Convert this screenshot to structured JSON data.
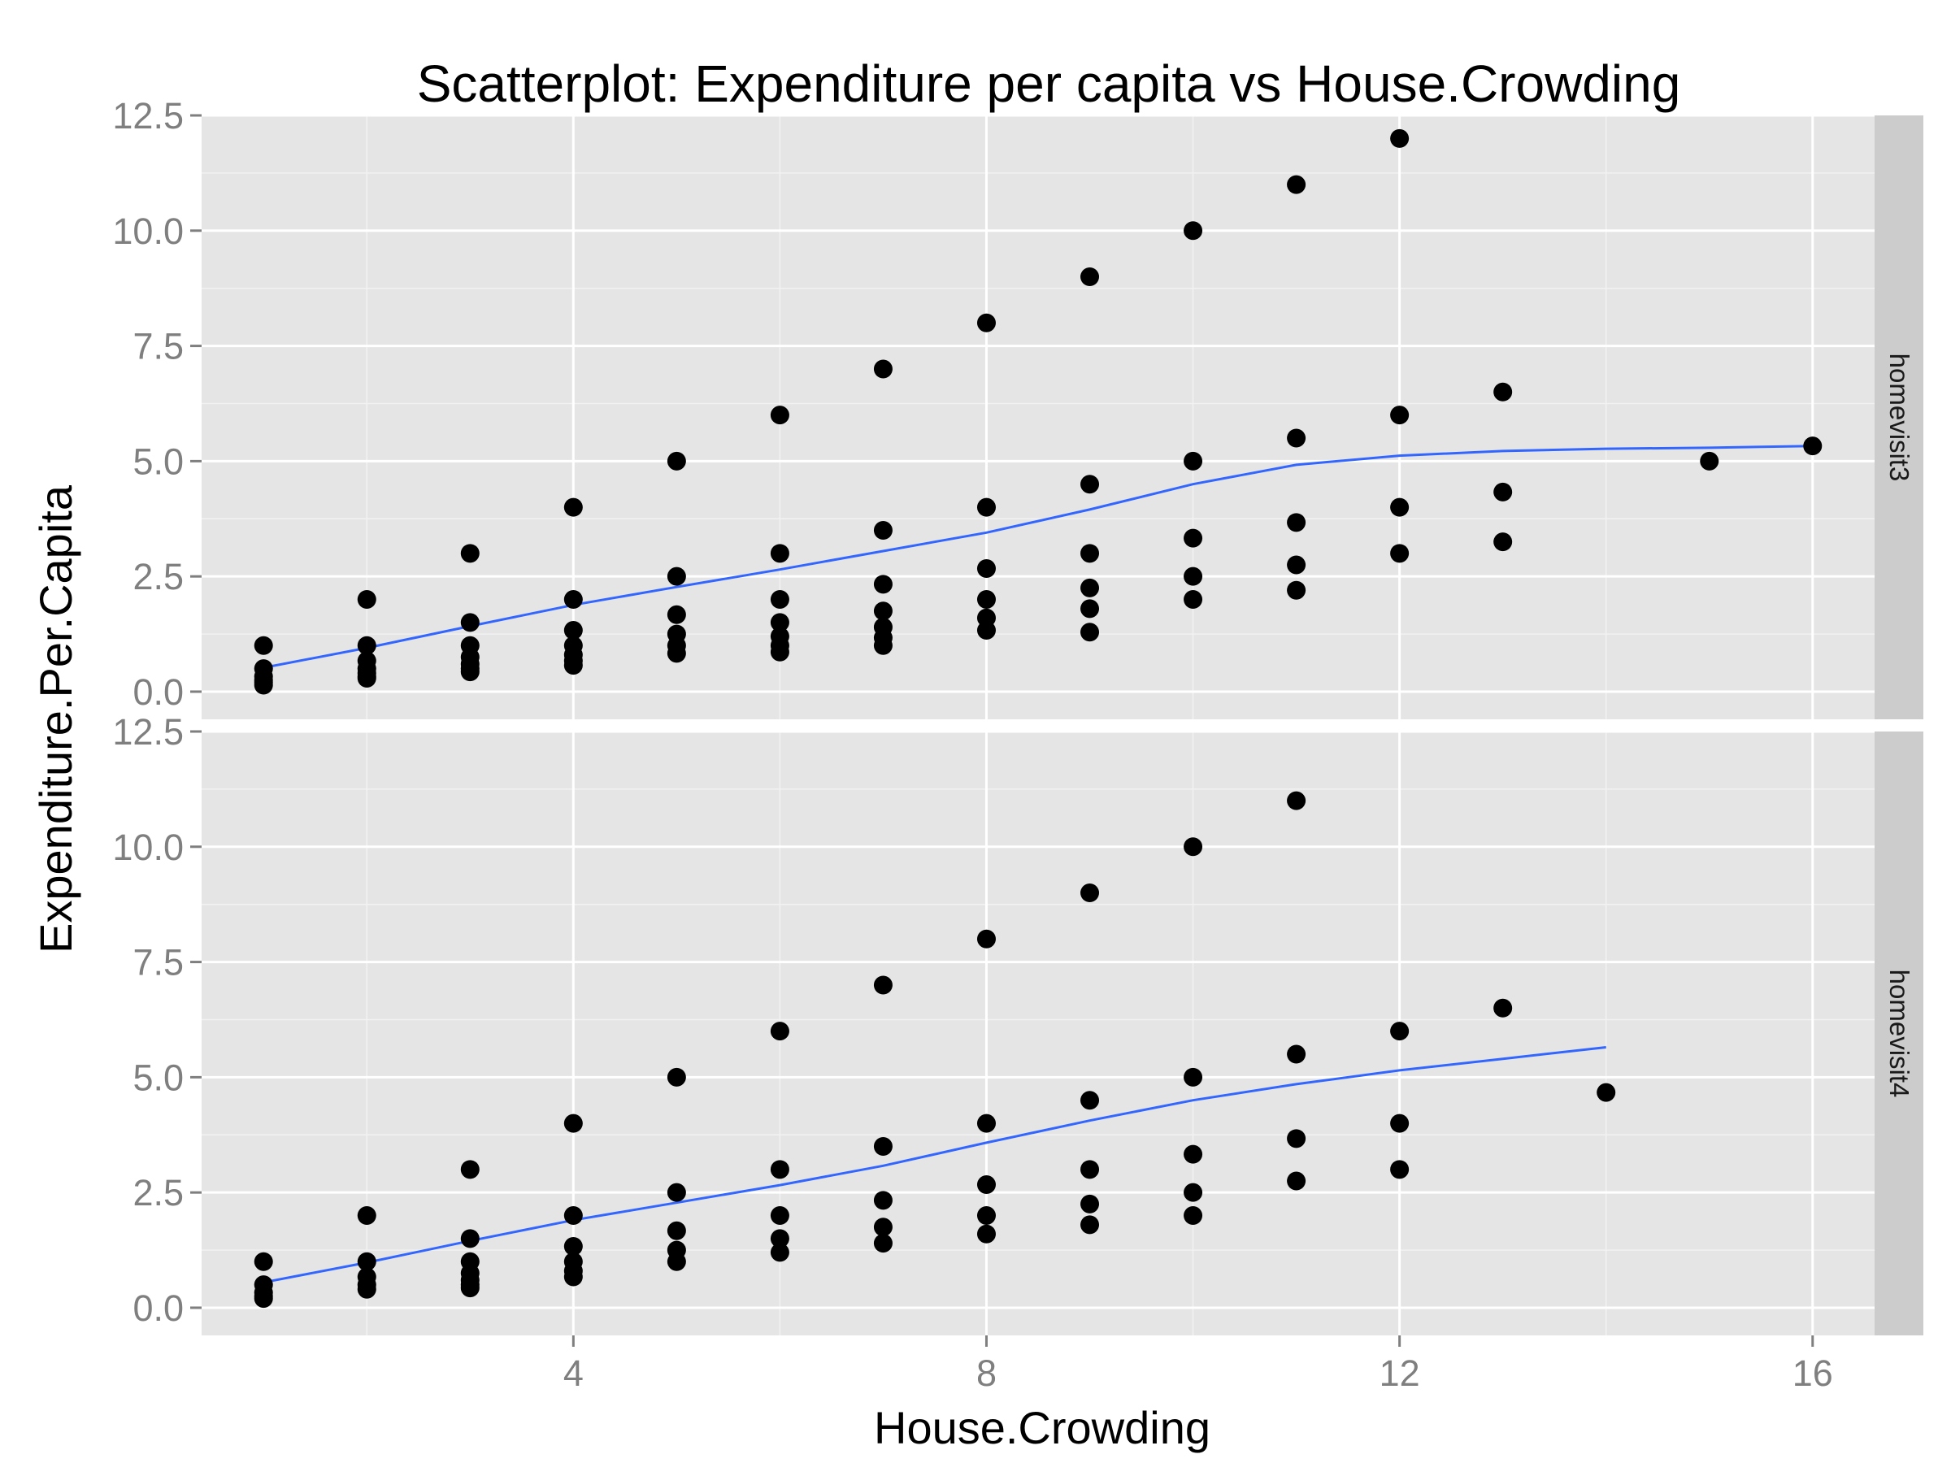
{
  "chart_data": {
    "type": "scatter",
    "title": "Scatterplot: Expenditure per capita vs House.Crowding",
    "xlabel": "House.Crowding",
    "ylabel": "Expenditure.Per.Capita",
    "xlim": [
      0.4,
      16.6
    ],
    "ylim": [
      -0.6,
      12.5
    ],
    "x_ticks": [
      4,
      8,
      12,
      16
    ],
    "x_tick_labels": [
      "4",
      "8",
      "12",
      "16"
    ],
    "y_ticks": [
      0,
      2.5,
      5,
      7.5,
      10,
      12.5
    ],
    "y_tick_labels": [
      "0.0",
      "2.5",
      "5.0",
      "7.5",
      "10.0",
      "12.5"
    ],
    "grid": true,
    "facet_layout": "rows",
    "colors": {
      "panel_bg": "#e5e5e5",
      "grid": "#ffffff",
      "strip_bg": "#cccccc",
      "points": "#000000",
      "smooth_line": "#3366ff",
      "tick_text": "#7f7f7f"
    },
    "panels": [
      {
        "facet": "homevisit3",
        "points": [
          [
            1,
            1
          ],
          [
            1,
            0.5
          ],
          [
            1,
            0.33
          ],
          [
            1,
            0.25
          ],
          [
            1,
            0.2
          ],
          [
            1,
            0.14
          ],
          [
            2,
            2
          ],
          [
            2,
            1
          ],
          [
            2,
            0.67
          ],
          [
            2,
            0.5
          ],
          [
            2,
            0.4
          ],
          [
            2,
            0.33
          ],
          [
            2,
            0.29
          ],
          [
            3,
            3
          ],
          [
            3,
            1.5
          ],
          [
            3,
            1
          ],
          [
            3,
            0.75
          ],
          [
            3,
            0.6
          ],
          [
            3,
            0.5
          ],
          [
            3,
            0.43
          ],
          [
            4,
            4
          ],
          [
            4,
            2
          ],
          [
            4,
            1.33
          ],
          [
            4,
            1
          ],
          [
            4,
            0.8
          ],
          [
            4,
            0.67
          ],
          [
            4,
            0.57
          ],
          [
            5,
            5
          ],
          [
            5,
            2.5
          ],
          [
            5,
            1.67
          ],
          [
            5,
            1.25
          ],
          [
            5,
            1
          ],
          [
            5,
            0.83
          ],
          [
            6,
            6
          ],
          [
            6,
            3
          ],
          [
            6,
            2
          ],
          [
            6,
            1.5
          ],
          [
            6,
            1.2
          ],
          [
            6,
            1
          ],
          [
            6,
            0.86
          ],
          [
            7,
            7
          ],
          [
            7,
            3.5
          ],
          [
            7,
            2.33
          ],
          [
            7,
            1.75
          ],
          [
            7,
            1.4
          ],
          [
            7,
            1.17
          ],
          [
            7,
            1
          ],
          [
            8,
            8
          ],
          [
            8,
            4
          ],
          [
            8,
            2.67
          ],
          [
            8,
            2
          ],
          [
            8,
            1.6
          ],
          [
            8,
            1.33
          ],
          [
            9,
            9
          ],
          [
            9,
            4.5
          ],
          [
            9,
            3
          ],
          [
            9,
            2.25
          ],
          [
            9,
            1.8
          ],
          [
            9,
            1.29
          ],
          [
            10,
            10
          ],
          [
            10,
            5
          ],
          [
            10,
            3.33
          ],
          [
            10,
            2.5
          ],
          [
            10,
            2
          ],
          [
            11,
            11
          ],
          [
            11,
            5.5
          ],
          [
            11,
            3.67
          ],
          [
            11,
            2.75
          ],
          [
            11,
            2.2
          ],
          [
            12,
            12
          ],
          [
            12,
            6
          ],
          [
            12,
            4
          ],
          [
            12,
            3
          ],
          [
            13,
            6.5
          ],
          [
            13,
            4.33
          ],
          [
            13,
            3.25
          ],
          [
            15,
            5
          ],
          [
            16,
            5.33
          ]
        ],
        "smooth": {
          "x": [
            1,
            2,
            3,
            4,
            5,
            6,
            7,
            8,
            9,
            10,
            11,
            12,
            13,
            14,
            15,
            16
          ],
          "y": [
            0.52,
            0.95,
            1.42,
            1.88,
            2.27,
            2.65,
            3.05,
            3.45,
            3.95,
            4.5,
            4.92,
            5.12,
            5.22,
            5.27,
            5.29,
            5.33
          ]
        }
      },
      {
        "facet": "homevisit4",
        "points": [
          [
            1,
            1
          ],
          [
            1,
            0.5
          ],
          [
            1,
            0.33
          ],
          [
            1,
            0.25
          ],
          [
            1,
            0.2
          ],
          [
            2,
            2
          ],
          [
            2,
            1
          ],
          [
            2,
            0.67
          ],
          [
            2,
            0.5
          ],
          [
            2,
            0.4
          ],
          [
            3,
            3
          ],
          [
            3,
            1.5
          ],
          [
            3,
            1
          ],
          [
            3,
            0.75
          ],
          [
            3,
            0.6
          ],
          [
            3,
            0.5
          ],
          [
            3,
            0.43
          ],
          [
            4,
            4
          ],
          [
            4,
            2
          ],
          [
            4,
            1.33
          ],
          [
            4,
            1
          ],
          [
            4,
            0.8
          ],
          [
            4,
            0.67
          ],
          [
            5,
            5
          ],
          [
            5,
            2.5
          ],
          [
            5,
            1.67
          ],
          [
            5,
            1.25
          ],
          [
            5,
            1
          ],
          [
            6,
            6
          ],
          [
            6,
            3
          ],
          [
            6,
            2
          ],
          [
            6,
            1.5
          ],
          [
            6,
            1.2
          ],
          [
            7,
            7
          ],
          [
            7,
            3.5
          ],
          [
            7,
            2.33
          ],
          [
            7,
            1.75
          ],
          [
            7,
            1.4
          ],
          [
            8,
            8
          ],
          [
            8,
            4
          ],
          [
            8,
            2.67
          ],
          [
            8,
            2
          ],
          [
            8,
            1.6
          ],
          [
            9,
            9
          ],
          [
            9,
            4.5
          ],
          [
            9,
            3
          ],
          [
            9,
            2.25
          ],
          [
            9,
            1.8
          ],
          [
            10,
            10
          ],
          [
            10,
            5
          ],
          [
            10,
            3.33
          ],
          [
            10,
            2.5
          ],
          [
            10,
            2
          ],
          [
            11,
            11
          ],
          [
            11,
            5.5
          ],
          [
            11,
            3.67
          ],
          [
            11,
            2.75
          ],
          [
            12,
            6
          ],
          [
            12,
            4
          ],
          [
            12,
            3
          ],
          [
            13,
            6.5
          ],
          [
            14,
            4.67
          ]
        ],
        "smooth": {
          "x": [
            1,
            2,
            3,
            4,
            5,
            6,
            7,
            8,
            9,
            10,
            11,
            12,
            13,
            14
          ],
          "y": [
            0.55,
            0.98,
            1.45,
            1.9,
            2.28,
            2.66,
            3.08,
            3.58,
            4.06,
            4.5,
            4.85,
            5.15,
            5.4,
            5.65
          ]
        }
      }
    ]
  }
}
